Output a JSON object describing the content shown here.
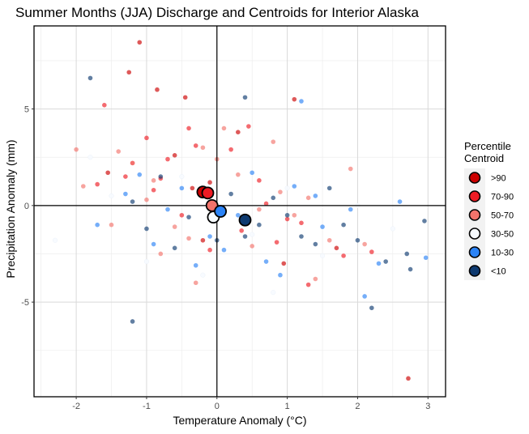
{
  "chart_data": {
    "type": "scatter",
    "title": "Summer Months (JJA) Discharge and Centroids for Interior Alaska",
    "xlabel": "Temperature Anomaly (°C)",
    "ylabel": "Precipitation Anomaly (mm)",
    "xlim": [
      -2.6,
      3.25
    ],
    "ylim": [
      -9.9,
      9.3
    ],
    "x_ticks": [
      -2,
      -1,
      0,
      1,
      2,
      3
    ],
    "y_ticks": [
      -5,
      0,
      5
    ],
    "grid": true,
    "reference_lines": {
      "x": 0,
      "y": 0
    },
    "legend": {
      "title": "Percentile\nCentroid",
      "position": "right",
      "entries": [
        {
          "label": ">90",
          "color": "#cc0000"
        },
        {
          "label": "70-90",
          "color": "#ee1c24"
        },
        {
          "label": "50-70",
          "color": "#f2736b"
        },
        {
          "label": "30-50",
          "color": "#f7fbff"
        },
        {
          "label": "10-30",
          "color": "#2b83f6"
        },
        {
          "label": "<10",
          "color": "#0e3a70"
        }
      ]
    },
    "series": [
      {
        "name": ">90",
        "color": "#cc0000",
        "x": [
          -1.1,
          -0.85,
          -0.45,
          -1.25,
          1.1,
          -0.1,
          2.72,
          0.3,
          -0.6,
          -0.2,
          0.95,
          1.7,
          -1.55,
          -0.35
        ],
        "y": [
          8.45,
          6.0,
          5.6,
          6.9,
          5.5,
          1.2,
          -8.95,
          3.8,
          2.6,
          -1.8,
          -3.0,
          -2.2,
          1.7,
          0.9
        ],
        "centroid": [
          -0.2,
          0.7
        ]
      },
      {
        "name": "70-90",
        "color": "#ee1c24",
        "x": [
          -1.6,
          -1.0,
          -0.7,
          -0.4,
          -1.3,
          -0.9,
          -0.5,
          0.2,
          0.6,
          1.0,
          -1.7,
          0.45,
          0.85,
          1.3,
          2.2,
          -1.2,
          -0.8,
          -0.3,
          0.35,
          1.2,
          -0.1,
          0.7,
          1.8
        ],
        "y": [
          5.2,
          3.5,
          2.4,
          4.0,
          1.5,
          0.8,
          -0.5,
          2.9,
          1.3,
          -0.7,
          1.1,
          4.1,
          -1.9,
          -4.1,
          -2.4,
          2.2,
          1.4,
          3.1,
          -1.3,
          -0.9,
          -2.3,
          0.1,
          -2.6
        ],
        "centroid": [
          -0.13,
          0.65
        ]
      },
      {
        "name": "50-70",
        "color": "#f2736b",
        "x": [
          -1.9,
          -1.4,
          -1.0,
          -0.6,
          -0.2,
          0.1,
          0.5,
          0.9,
          1.4,
          1.9,
          -2.0,
          -1.2,
          -0.4,
          0.3,
          1.1,
          -0.8,
          0.8,
          1.6,
          -1.5,
          0.0,
          -0.3,
          0.6,
          1.3,
          2.1,
          -0.9
        ],
        "y": [
          1.0,
          2.8,
          0.3,
          -1.1,
          3.0,
          4.0,
          -2.1,
          0.7,
          -3.8,
          1.9,
          2.9,
          2.2,
          -1.7,
          1.6,
          -0.5,
          -2.5,
          3.3,
          -1.8,
          -1.0,
          2.4,
          -4.0,
          -0.2,
          0.4,
          -2.0,
          1.3
        ],
        "centroid": [
          -0.07,
          0.0
        ]
      },
      {
        "name": "30-50",
        "color": "#f7fbff",
        "x": [
          -2.3,
          -1.5,
          -1.0,
          -0.5,
          0.0,
          0.5,
          1.0,
          1.5,
          2.0,
          2.5,
          -1.8,
          -0.2,
          0.8
        ],
        "y": [
          -1.8,
          0.5,
          -2.9,
          1.5,
          -0.3,
          -1.5,
          0.9,
          -2.6,
          0.0,
          -1.2,
          2.5,
          -3.6,
          -4.5
        ],
        "centroid": [
          -0.05,
          -0.6
        ]
      },
      {
        "name": "10-30",
        "color": "#2b83f6",
        "x": [
          -1.7,
          -1.3,
          -0.9,
          -0.5,
          -0.1,
          0.3,
          0.7,
          1.1,
          1.5,
          1.9,
          2.3,
          2.6,
          -1.1,
          0.1,
          0.9,
          1.4,
          2.1,
          2.97,
          -0.7,
          0.5,
          1.2,
          -0.3
        ],
        "y": [
          -1.0,
          0.6,
          -2.0,
          0.9,
          -1.6,
          -0.5,
          -2.9,
          1.0,
          -1.1,
          -0.2,
          -3.0,
          0.2,
          1.6,
          -2.3,
          -3.6,
          0.5,
          -4.7,
          -2.7,
          -0.2,
          1.7,
          5.4,
          -3.1
        ],
        "centroid": [
          0.05,
          -0.3
        ]
      },
      {
        "name": "<10",
        "color": "#0e3a70",
        "x": [
          -1.8,
          -1.2,
          -0.8,
          -0.4,
          0.0,
          0.4,
          0.8,
          1.2,
          1.6,
          2.0,
          2.4,
          2.95,
          -1.0,
          0.2,
          0.6,
          1.0,
          1.4,
          1.8,
          2.2,
          2.7,
          -1.2,
          0.4,
          2.75,
          -0.6
        ],
        "y": [
          6.6,
          0.2,
          1.5,
          -0.6,
          -1.8,
          5.6,
          0.4,
          -1.6,
          0.9,
          -1.8,
          -2.9,
          -0.8,
          -1.2,
          0.6,
          -1.0,
          -0.5,
          -2.0,
          -1.0,
          -5.3,
          -2.5,
          -6.0,
          -1.6,
          -3.3,
          -2.2
        ],
        "centroid": [
          0.4,
          -0.75
        ]
      }
    ]
  }
}
